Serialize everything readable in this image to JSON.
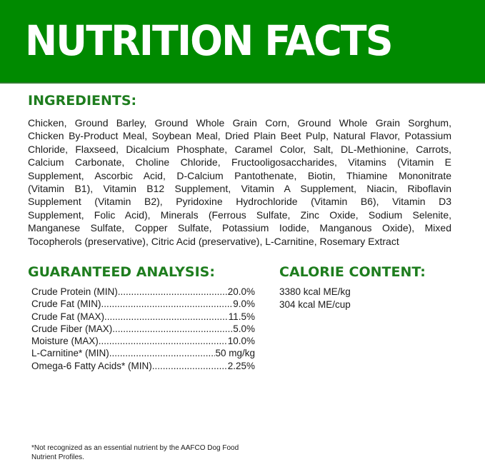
{
  "title": "NUTRITION FACTS",
  "colors": {
    "banner": "#008a00",
    "heading": "#1e7d1e"
  },
  "ingredients": {
    "heading": "INGREDIENTS:",
    "lines": [
      "Chicken, Ground Barley, Ground Whole Grain Corn, Ground Whole Grain Sorghum,",
      "Chicken By-Product Meal, Soybean Meal, Dried Plain Beet Pulp, Natural Flavor, Potassium",
      "Chloride, Flaxseed, Dicalcium Phosphate, Caramel Color, Salt, DL-Methionine, Carrots,",
      "Calcium Carbonate, Choline Chloride, Fructooligosaccharides, Vitamins (Vitamin E",
      "Supplement, Ascorbic Acid, D-Calcium Pantothenate, Biotin, Thiamine Mononitrate",
      "(Vitamin B1), Vitamin B12 Supplement, Vitamin A Supplement, Niacin, Riboflavin",
      "Supplement (Vitamin B2), Pyridoxine Hydrochloride (Vitamin B6), Vitamin D3",
      "Supplement, Folic Acid), Minerals (Ferrous Sulfate, Zinc Oxide, Sodium Selenite,",
      "Manganese Sulfate, Copper Sulfate, Potassium Iodide, Manganous Oxide), Mixed",
      "Tocopherols (preservative), Citric Acid (preservative), L-Carnitine, Rosemary Extract"
    ]
  },
  "analysis": {
    "heading": "GUARANTEED ANALYSIS:",
    "rows": [
      {
        "label": "Crude Protein (MIN)",
        "value": "20.0%"
      },
      {
        "label": "Crude Fat (MIN)",
        "value": "9.0%"
      },
      {
        "label": "Crude Fat (MAX)",
        "value": "11.5%"
      },
      {
        "label": "Crude Fiber (MAX)",
        "value": "5.0%"
      },
      {
        "label": "Moisture (MAX)",
        "value": "10.0%"
      },
      {
        "label": "L-Carnitine* (MIN)",
        "value": "50 mg/kg"
      },
      {
        "label": "Omega-6 Fatty Acids* (MIN)",
        "value": "2.25%"
      }
    ]
  },
  "calorie": {
    "heading": "CALORIE CONTENT:",
    "lines": [
      "3380 kcal ME/kg",
      "304 kcal ME/cup"
    ]
  },
  "footnote": "*Not recognized as an essential nutrient by the AAFCO Dog Food Nutrient Profiles."
}
